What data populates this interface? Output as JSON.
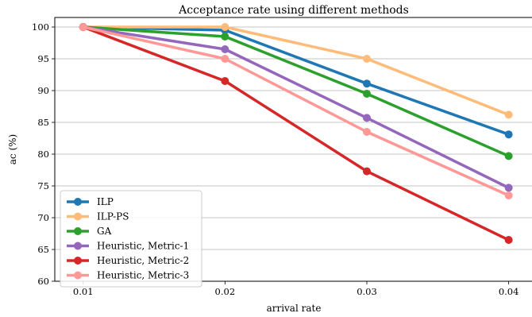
{
  "chart_data": {
    "type": "line",
    "title": "Acceptance rate using different methods",
    "xlabel": "arrival rate",
    "ylabel": "ac (%)",
    "x": [
      0.01,
      0.02,
      0.03,
      0.04
    ],
    "x_tick_labels": [
      "0.01",
      "0.02",
      "0.03",
      "0.04"
    ],
    "y_tick_labels": [
      "60",
      "65",
      "70",
      "75",
      "80",
      "85",
      "90",
      "95",
      "100"
    ],
    "ylim": [
      60,
      101.5
    ],
    "xlim": [
      0.008,
      0.0417
    ],
    "grid": "horizontal",
    "legend_position": "lower-left",
    "series": [
      {
        "name": "ILP",
        "color": "#1f77b4",
        "values": [
          100,
          99.5,
          91.1,
          83.1
        ]
      },
      {
        "name": "ILP-PS",
        "color": "#ffbb78",
        "values": [
          100,
          100,
          95,
          86.2
        ]
      },
      {
        "name": "GA",
        "color": "#2ca02c",
        "values": [
          100,
          98.5,
          89.5,
          79.7
        ]
      },
      {
        "name": "Heuristic, Metric-1",
        "color": "#9467bd",
        "values": [
          100,
          96.5,
          85.7,
          74.7
        ]
      },
      {
        "name": "Heuristic, Metric-2",
        "color": "#d62728",
        "values": [
          100,
          91.5,
          77.3,
          66.5
        ]
      },
      {
        "name": "Heuristic, Metric-3",
        "color": "#ff9896",
        "values": [
          100,
          95,
          83.5,
          73.5
        ]
      }
    ]
  }
}
